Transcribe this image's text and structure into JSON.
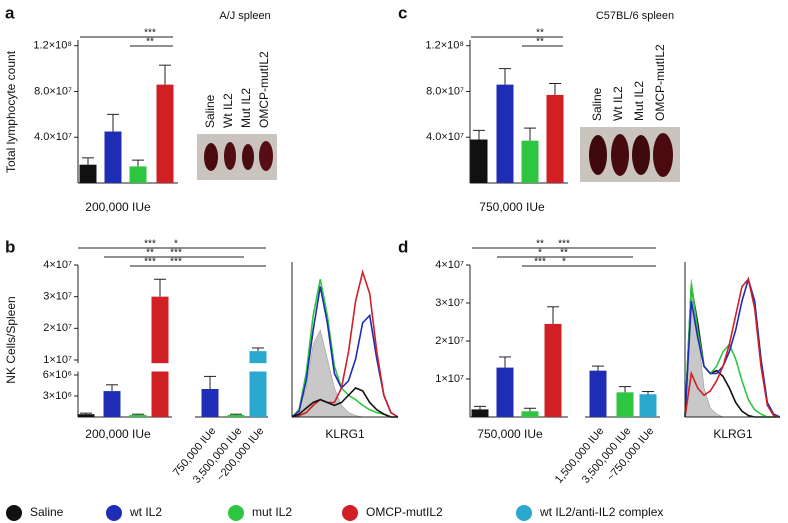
{
  "legend": [
    {
      "name": "Saline",
      "color": "#111111"
    },
    {
      "name": "wt IL2",
      "color": "#1f2db5"
    },
    {
      "name": "mut IL2",
      "color": "#2ec640"
    },
    {
      "name": "OMCP-mutIL2",
      "color": "#d11f26"
    },
    {
      "name": "wt IL2/anti-IL2 complex",
      "color": "#2aa8cf"
    }
  ],
  "chart_data": [
    {
      "type": "bar",
      "panel": "a",
      "title": "A/J spleen",
      "y_label": "Total lymphocyte count",
      "x_label": "200,000 IUe",
      "categories": [
        null,
        null,
        null,
        null
      ],
      "values": [
        16000000,
        45000000,
        14500000,
        86000000
      ],
      "errors": [
        6000000,
        15000000,
        5500000,
        17000000
      ],
      "colors": [
        "#111111",
        "#1f2db5",
        "#2ec640",
        "#d11f26"
      ],
      "ylim": [
        0,
        125000000
      ],
      "yticks": [
        {
          "value": 40000000,
          "label": "4.0×10⁷"
        },
        {
          "value": 80000000,
          "label": "8.0×10⁷"
        },
        {
          "value": 120000000,
          "label": "1.2×10⁸"
        }
      ],
      "significance": [
        "***",
        "**"
      ],
      "photo_labels": [
        "Saline",
        "Wt IL2",
        "Mut IL2",
        "OMCP-mutIL2"
      ]
    },
    {
      "type": "bar",
      "panel": "c",
      "title": "C57BL/6 spleen",
      "x_label": "750,000 IUe",
      "categories": [
        null,
        null,
        null,
        null
      ],
      "values": [
        38000000,
        86000000,
        37000000,
        77000000
      ],
      "errors": [
        8000000,
        14000000,
        11000000,
        10000000
      ],
      "colors": [
        "#111111",
        "#1f2db5",
        "#2ec640",
        "#d11f26"
      ],
      "ylim": [
        0,
        125000000
      ],
      "yticks": [
        {
          "value": 40000000,
          "label": "4.0×10⁷"
        },
        {
          "value": 80000000,
          "label": "8.0×10⁷"
        },
        {
          "value": 120000000,
          "label": "1.2×10⁸"
        }
      ],
      "significance": [
        "**",
        "**"
      ],
      "photo_labels": [
        "Saline",
        "Wt IL2",
        "Mut IL2",
        "OMCP-mutIL2"
      ]
    },
    {
      "type": "bar",
      "panel": "b",
      "y_label": "NK Cells/Spleen",
      "x_label": "200,000 IUe",
      "categories": [
        null,
        null,
        null,
        null,
        "750,000 IUe",
        "3,500,000 IUe",
        "~200,000 IUe"
      ],
      "values": [
        400000,
        3700000,
        300000,
        30000000,
        4000000,
        300000,
        12800000
      ],
      "errors": [
        150000,
        900000,
        100000,
        5500000,
        1800000,
        100000,
        1000000
      ],
      "colors": [
        "#111111",
        "#1f2db5",
        "#2ec640",
        "#d11f26",
        "#1f2db5",
        "#2ec640",
        "#2aa8cf"
      ],
      "ylim": [
        0,
        40000000
      ],
      "axis_break": [
        6500000,
        9000000
      ],
      "yticks": [
        {
          "value": 3000000,
          "label": "3×10⁶"
        },
        {
          "value": 6000000,
          "label": "6×10⁶"
        },
        {
          "value": 10000000,
          "label": "1×10⁷"
        },
        {
          "value": 20000000,
          "label": "2×10⁷"
        },
        {
          "value": 30000000,
          "label": "3×10⁷"
        },
        {
          "value": 40000000,
          "label": "4×10⁷"
        }
      ],
      "significance": [
        "***",
        "*",
        "**",
        "***",
        "***",
        "***"
      ]
    },
    {
      "type": "line",
      "x_label": "KLRG1",
      "x": [
        0,
        1,
        2,
        3,
        4,
        5,
        6,
        7,
        8,
        9,
        10,
        11,
        12,
        13,
        14,
        15
      ],
      "xlim": [
        0,
        15
      ],
      "ylim": [
        0,
        100
      ],
      "series": [
        {
          "color": "#c8c8c8",
          "fill": true,
          "values": [
            0,
            5,
            20,
            50,
            60,
            40,
            20,
            8,
            3,
            1,
            0,
            0,
            0,
            0,
            0,
            0
          ]
        },
        {
          "color": "#2ec640",
          "values": [
            0,
            5,
            30,
            70,
            95,
            70,
            35,
            20,
            15,
            12,
            8,
            5,
            3,
            2,
            0,
            0
          ]
        },
        {
          "color": "#1f2db5",
          "values": [
            0,
            4,
            25,
            60,
            90,
            65,
            30,
            20,
            25,
            40,
            65,
            70,
            40,
            15,
            3,
            0
          ]
        },
        {
          "color": "#d11f26",
          "values": [
            0,
            1,
            3,
            8,
            12,
            10,
            10,
            20,
            45,
            80,
            100,
            85,
            45,
            15,
            3,
            0
          ]
        },
        {
          "color": "#111111",
          "values": [
            0,
            2,
            6,
            10,
            12,
            10,
            8,
            10,
            15,
            20,
            18,
            10,
            5,
            2,
            0,
            0
          ]
        }
      ]
    },
    {
      "type": "bar",
      "panel": "d",
      "x_label": "750,000 IUe",
      "categories": [
        null,
        null,
        null,
        null,
        "1,500,000 IUe",
        "3,500,000 IUe",
        "~750,000 IUe"
      ],
      "values": [
        2000000,
        13000000,
        1500000,
        24500000,
        12200000,
        6500000,
        6000000
      ],
      "errors": [
        800000,
        2800000,
        800000,
        4500000,
        1200000,
        1500000,
        700000
      ],
      "colors": [
        "#111111",
        "#1f2db5",
        "#2ec640",
        "#d11f26",
        "#1f2db5",
        "#2ec640",
        "#2aa8cf"
      ],
      "ylim": [
        0,
        40000000
      ],
      "yticks": [
        {
          "value": 10000000,
          "label": "1×10⁷"
        },
        {
          "value": 20000000,
          "label": "2×10⁷"
        },
        {
          "value": 30000000,
          "label": "3×10⁷"
        },
        {
          "value": 40000000,
          "label": "4×10⁷"
        }
      ],
      "significance": [
        "**",
        "***",
        "*",
        "**",
        "***",
        "*"
      ]
    },
    {
      "type": "line",
      "x_label": "KLRG1",
      "x": [
        0,
        1,
        2,
        3,
        4,
        5,
        6,
        7,
        8,
        9,
        10,
        11,
        12,
        13,
        14,
        15
      ],
      "xlim": [
        0,
        15
      ],
      "ylim": [
        0,
        100
      ],
      "series": [
        {
          "color": "#c8c8c8",
          "fill": true,
          "values": [
            0,
            95,
            60,
            20,
            6,
            2,
            0,
            0,
            0,
            0,
            0,
            0,
            0,
            0,
            0,
            0
          ]
        },
        {
          "color": "#111111",
          "values": [
            0,
            90,
            65,
            35,
            30,
            32,
            28,
            20,
            10,
            4,
            1,
            0,
            0,
            0,
            0,
            0
          ]
        },
        {
          "color": "#2ec640",
          "values": [
            0,
            92,
            60,
            35,
            30,
            35,
            45,
            50,
            40,
            25,
            12,
            5,
            2,
            0,
            0,
            0
          ]
        },
        {
          "color": "#1f2db5",
          "values": [
            0,
            80,
            55,
            35,
            30,
            30,
            35,
            45,
            60,
            80,
            95,
            80,
            40,
            10,
            2,
            0
          ]
        },
        {
          "color": "#d11f26",
          "values": [
            0,
            30,
            20,
            15,
            18,
            25,
            35,
            50,
            70,
            90,
            95,
            75,
            35,
            8,
            1,
            0
          ]
        }
      ]
    }
  ]
}
